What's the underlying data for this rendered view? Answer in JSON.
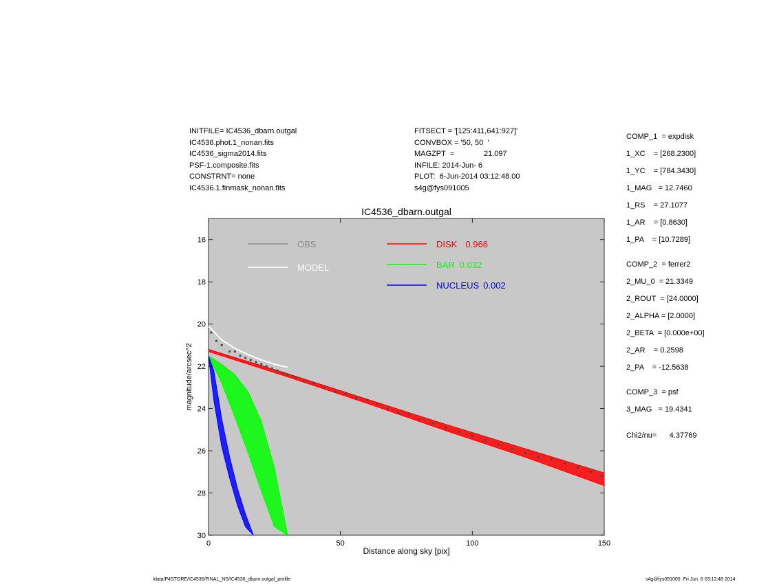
{
  "header_left": [
    "INITFILE= IC4536_dbarn.outgal",
    "IC4536.phot.1_nonan.fits",
    "IC4536_sigma2014.fits",
    "PSF-1.composite.fits",
    "CONSTRNT= none",
    "IC4536.1.finmask_nonan.fits"
  ],
  "header_mid": [
    "FITSECT = '[125:411,641:927]'",
    "CONVBOX = '50, 50  '",
    "MAGZPT  =              21.097",
    "INFILE: 2014-Jun- 6",
    "PLOT:  6-Jun-2014 03:12:48.00",
    "s4g@fys091005"
  ],
  "params": [
    "COMP_1  = expdisk",
    "1_XC    = [268.2300]",
    "1_YC    = [784.3430]",
    "1_MAG   = 12.7460",
    "1_RS    = 27.1077",
    "1_AR    = [0.8630]",
    "1_PA    = [10.7289]",
    "COMP_2  = ferrer2",
    "2_MU_0  = 21.3349",
    "2_ROUT  = [24.0000]",
    "2_ALPHA = [2.0000]",
    "2_BETA  = [0.000e+00]",
    "2_AR    = 0.2598",
    "2_PA    = -12.5638",
    "COMP_3  = psf",
    "3_MAG   = 19.4341",
    "Chi2/nu=      4.37769"
  ],
  "footer": {
    "left": "/data/P4STORE/IC4536/FINAL_NS/IC4536_dbarn.outgal_profile",
    "right": "s4g@fys091005  Fri Jun  6 03:12:48 2014"
  },
  "chart_data": {
    "type": "scatter",
    "title": "IC4536_dbarn.outgal",
    "xlabel": "Distance along sky [pix]",
    "ylabel": "magnitude/arcsec^2",
    "xlim": [
      0,
      150
    ],
    "ylim": [
      15,
      30
    ],
    "y_inverted": true,
    "xticks": [
      0,
      50,
      100,
      150
    ],
    "yticks": [
      16,
      18,
      20,
      22,
      24,
      26,
      28,
      30
    ],
    "background": "#c8c8c8",
    "legend": [
      {
        "label": "OBS",
        "color": "#8c8c8c"
      },
      {
        "label": "MODEL",
        "color": "#ffffff"
      },
      {
        "label": "DISK",
        "value": "0.966",
        "color": "#ff0000"
      },
      {
        "label": "BAR",
        "value": "0.032",
        "color": "#00ff00"
      },
      {
        "label": "NUCLEUS",
        "value": "0.002",
        "color": "#0000ff"
      }
    ],
    "series": [
      {
        "name": "DISK",
        "color": "#ff0000",
        "kind": "band",
        "x": [
          0,
          30,
          60,
          90,
          120,
          150
        ],
        "y_low": [
          21.2,
          22.35,
          23.55,
          24.75,
          25.9,
          27.05
        ],
        "y_high": [
          21.3,
          22.5,
          23.75,
          25.05,
          26.3,
          27.65
        ]
      },
      {
        "name": "BAR",
        "color": "#00ff00",
        "kind": "band",
        "x": [
          0,
          5,
          10,
          15,
          20,
          25,
          30
        ],
        "y_low": [
          21.5,
          21.9,
          22.4,
          23.2,
          24.6,
          26.8,
          30.0
        ],
        "y_high": [
          21.5,
          22.8,
          24.4,
          26.1,
          27.9,
          29.6,
          30.0
        ]
      },
      {
        "name": "NUCLEUS",
        "color": "#0000ff",
        "kind": "band",
        "x": [
          0,
          2,
          5,
          8,
          11,
          14,
          17
        ],
        "y_low": [
          21.5,
          22.2,
          24.5,
          26.3,
          27.8,
          29.0,
          30.0
        ],
        "y_high": [
          21.5,
          23.6,
          25.8,
          27.3,
          28.6,
          29.6,
          30.0
        ]
      },
      {
        "name": "MODEL",
        "color": "#ffffff",
        "kind": "line",
        "x": [
          0,
          5,
          10,
          15,
          20,
          25,
          30
        ],
        "y": [
          20.1,
          20.75,
          21.15,
          21.45,
          21.7,
          21.9,
          22.05
        ]
      },
      {
        "name": "OBS",
        "color": "#4a4a4a",
        "kind": "scatter",
        "x": [
          1,
          3,
          5,
          8,
          10,
          12,
          14,
          16,
          18,
          20,
          22,
          24,
          26,
          28,
          30,
          33,
          36,
          40,
          44,
          48,
          52,
          56,
          60,
          64,
          68,
          72,
          76,
          80,
          85,
          90,
          95,
          100,
          105,
          110,
          115,
          120,
          125,
          130,
          135,
          140,
          145,
          149
        ],
        "y": [
          20.4,
          20.8,
          21.0,
          21.3,
          21.3,
          21.5,
          21.6,
          21.7,
          21.8,
          21.9,
          22.0,
          22.1,
          22.2,
          22.3,
          22.4,
          22.5,
          22.7,
          22.8,
          23.0,
          23.2,
          23.3,
          23.5,
          23.6,
          23.8,
          24.0,
          24.2,
          24.3,
          24.5,
          24.7,
          24.9,
          25.1,
          25.3,
          25.5,
          25.7,
          25.9,
          26.1,
          26.3,
          26.4,
          26.6,
          26.8,
          27.0,
          27.2
        ]
      }
    ]
  }
}
